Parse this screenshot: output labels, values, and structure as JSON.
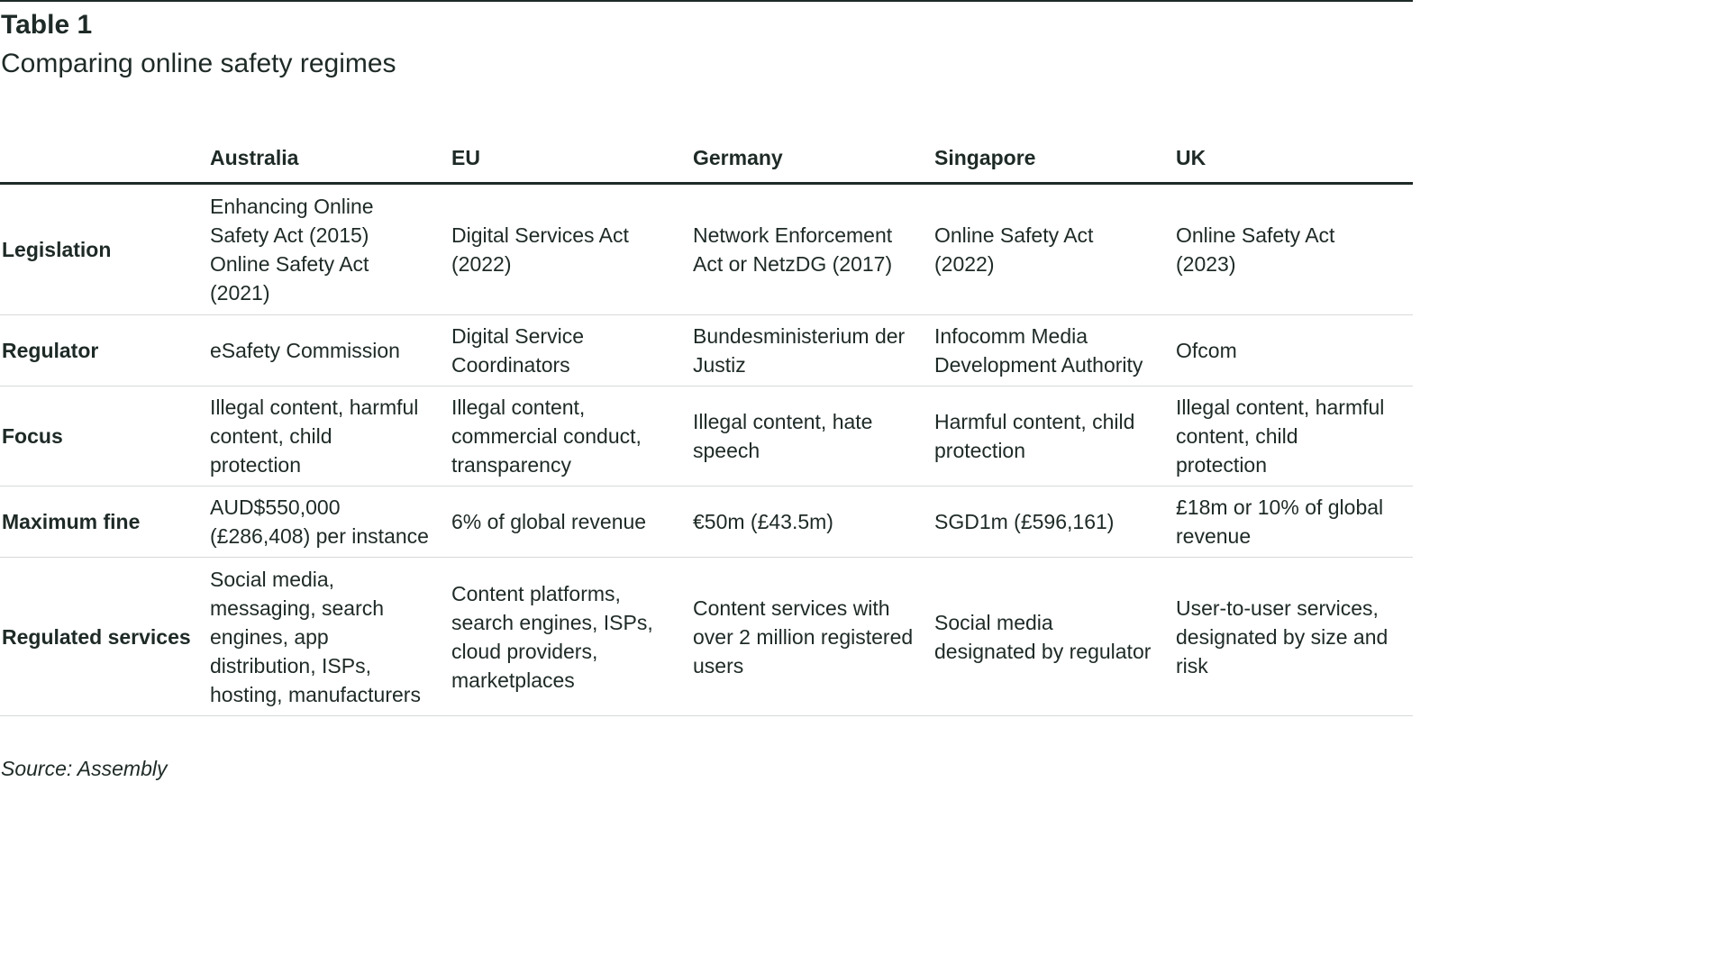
{
  "header": {
    "label": "Table 1",
    "title": "Comparing online safety regimes"
  },
  "table": {
    "columns": [
      "",
      "Australia",
      "EU",
      "Germany",
      "Singapore",
      "UK"
    ],
    "rows": [
      {
        "label": "Legislation",
        "cells": [
          [
            "Enhancing Online",
            "Safety Act (2015)",
            "Online Safety Act",
            "(2021)"
          ],
          [
            "Digital Services Act",
            "(2022)"
          ],
          [
            "Network Enforcement",
            "Act or NetzDG (2017)"
          ],
          [
            "Online Safety Act",
            "(2022)"
          ],
          [
            "Online Safety Act",
            "(2023)"
          ]
        ]
      },
      {
        "label": "Regulator",
        "cells": [
          [
            "eSafety Commission"
          ],
          [
            "Digital Service",
            "Coordinators"
          ],
          [
            "Bundesministerium der",
            "Justiz"
          ],
          [
            "Infocomm Media",
            "Development Authority"
          ],
          [
            "Ofcom"
          ]
        ]
      },
      {
        "label": "Focus",
        "cells": [
          [
            "Illegal content, harmful",
            "content, child",
            "protection"
          ],
          [
            "Illegal content,",
            "commercial conduct,",
            "transparency"
          ],
          [
            "Illegal content, hate",
            "speech"
          ],
          [
            "Harmful content, child",
            "protection"
          ],
          [
            "Illegal content, harmful",
            "content, child",
            "protection"
          ]
        ]
      },
      {
        "label": "Maximum fine",
        "cells": [
          [
            "AUD$550,000",
            "(£286,408) per instance"
          ],
          [
            "6% of global revenue"
          ],
          [
            "€50m (£43.5m)"
          ],
          [
            "SGD1m (£596,161)"
          ],
          [
            "£18m or 10% of global",
            "revenue"
          ]
        ]
      },
      {
        "label": "Regulated services",
        "cells": [
          [
            "Social media,",
            "messaging, search",
            "engines, app",
            "distribution, ISPs,",
            "hosting, manufacturers"
          ],
          [
            "Content platforms,",
            "search engines, ISPs,",
            "cloud providers,",
            "marketplaces"
          ],
          [
            "Content services with",
            "over 2 million registered",
            "users"
          ],
          [
            "Social media",
            "designated by regulator"
          ],
          [
            "User-to-user services,",
            "designated by size and",
            "risk"
          ]
        ]
      }
    ]
  },
  "footer": {
    "source": "Source: Assembly"
  }
}
